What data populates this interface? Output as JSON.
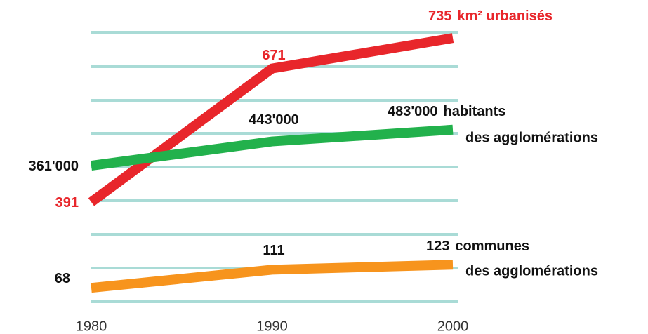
{
  "chart_data": {
    "type": "line",
    "x": [
      1980,
      1990,
      2000
    ],
    "xlim": [
      1980,
      2000
    ],
    "xticks": [
      1980,
      1990,
      2000
    ],
    "series": [
      {
        "label_lines": [
          "km² urbanisés"
        ],
        "color": "#e8262b",
        "values": [
          391,
          671,
          735
        ],
        "value_labels": [
          "391",
          "671",
          "735"
        ],
        "ylim": [
          182,
          747
        ]
      },
      {
        "label_lines": [
          "habitants",
          "des agglomérations"
        ],
        "color": "#22b14c",
        "values": [
          361000,
          443000,
          483000
        ],
        "value_labels": [
          "361'000",
          "443'000",
          "483'000"
        ],
        "ylim": [
          -100900,
          813400
        ]
      },
      {
        "label_lines": [
          "communes",
          "des agglomérations"
        ],
        "color": "#f7941d",
        "values": [
          68,
          111,
          123
        ],
        "value_labels": [
          "68",
          "111",
          "123"
        ],
        "ylim": [
          35,
          675
        ]
      }
    ]
  }
}
